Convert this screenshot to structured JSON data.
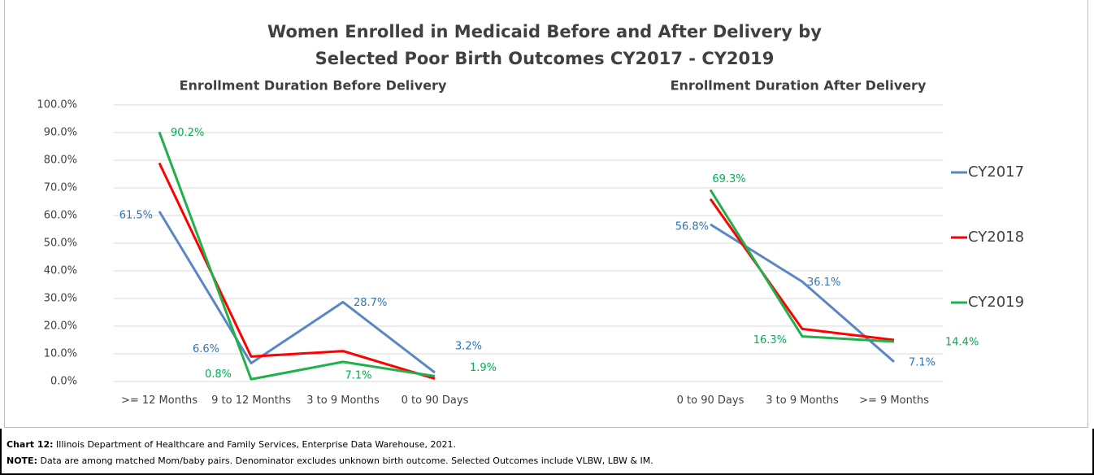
{
  "chart_data": {
    "type": "line",
    "title": "Women Enrolled in Medicaid Before and After Delivery by",
    "title_line2": "Selected Poor Birth Outcomes CY2017 - CY2019",
    "subtitles": [
      "Enrollment  Duration  Before  Delivery",
      "Enrollment  Duration  After  Delivery"
    ],
    "categories": [
      ">= 12 Months",
      "9 to 12 Months",
      "3 to 9 Months",
      "0 to 90 Days",
      null,
      null,
      "0 to 90 Days",
      "3 to 9 Months",
      ">= 9 Months"
    ],
    "ylim": [
      0,
      100
    ],
    "yticks": [
      {
        "value": 0,
        "label": "0.0%"
      },
      {
        "value": 10,
        "label": "10.0%"
      },
      {
        "value": 20,
        "label": "20.0%"
      },
      {
        "value": 30,
        "label": "30.0%"
      },
      {
        "value": 40,
        "label": "40.0%"
      },
      {
        "value": 50,
        "label": "50.0%"
      },
      {
        "value": 60,
        "label": "60.0%"
      },
      {
        "value": 70,
        "label": "70.0%"
      },
      {
        "value": 80,
        "label": "80.0%"
      },
      {
        "value": 90,
        "label": "90.0%"
      },
      {
        "value": 100,
        "label": "100.0%"
      }
    ],
    "grid": true,
    "legend": "right",
    "series": [
      {
        "name": "CY2017",
        "color": "#5b86c5",
        "label_color": "#2e75b6",
        "values": [
          61.5,
          6.6,
          28.7,
          3.2,
          null,
          null,
          56.8,
          36.1,
          7.1
        ],
        "value_labels": [
          "61.5%",
          "6.6%",
          "28.7%",
          "3.2%",
          null,
          null,
          "56.8%",
          "36.1%",
          "7.1%"
        ]
      },
      {
        "name": "CY2018",
        "color": "#ff0000",
        "values": [
          79,
          9,
          11,
          1,
          null,
          null,
          66,
          19,
          15
        ]
      },
      {
        "name": "CY2019",
        "color": "#21b04b",
        "label_color": "#00b050",
        "values": [
          90.2,
          0.8,
          7.1,
          1.9,
          null,
          null,
          69.3,
          16.3,
          14.4
        ],
        "value_labels": [
          "90.2%",
          "0.8%",
          "7.1%",
          "1.9%",
          null,
          null,
          "69.3%",
          "16.3%",
          "14.4%"
        ]
      }
    ],
    "source": {
      "label": "Chart 12:",
      "text": " Illinois Department of Healthcare and Family Services, Enterprise Data Warehouse, 2021."
    },
    "note": {
      "label": "NOTE:",
      "text": "  Data are among matched Mom/baby pairs. Denominator excludes unknown birth outcome. Selected Outcomes include VLBW, LBW & IM."
    }
  }
}
